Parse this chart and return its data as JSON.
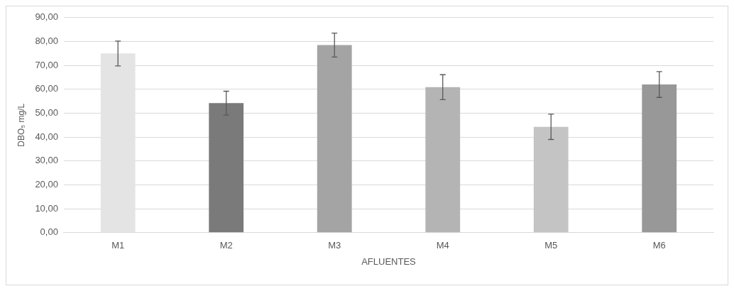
{
  "chart_data": {
    "type": "bar",
    "xlabel": "AFLUENTES",
    "ylabel": "DBO₅ mg/L",
    "categories": [
      "M1",
      "M2",
      "M3",
      "M4",
      "M5",
      "M6"
    ],
    "values": [
      75,
      54.2,
      78.5,
      60.9,
      44.3,
      62
    ],
    "errors": [
      5.2,
      5,
      5,
      5.2,
      5.3,
      5.4
    ],
    "colors": [
      "#e4e4e4",
      "#7a7a7a",
      "#a4a4a4",
      "#b4b4b4",
      "#c4c4c4",
      "#989898"
    ],
    "ylim": [
      0,
      90
    ],
    "yticks": [
      {
        "value": 0,
        "label": "0,00"
      },
      {
        "value": 10,
        "label": "10,00"
      },
      {
        "value": 20,
        "label": "20,00"
      },
      {
        "value": 30,
        "label": "30,00"
      },
      {
        "value": 40,
        "label": "40,00"
      },
      {
        "value": 50,
        "label": "50,00"
      },
      {
        "value": 60,
        "label": "60,00"
      },
      {
        "value": 70,
        "label": "70,00"
      },
      {
        "value": 80,
        "label": "80,00"
      },
      {
        "value": 90,
        "label": "90,00"
      }
    ],
    "grid": "y",
    "legend": false
  }
}
